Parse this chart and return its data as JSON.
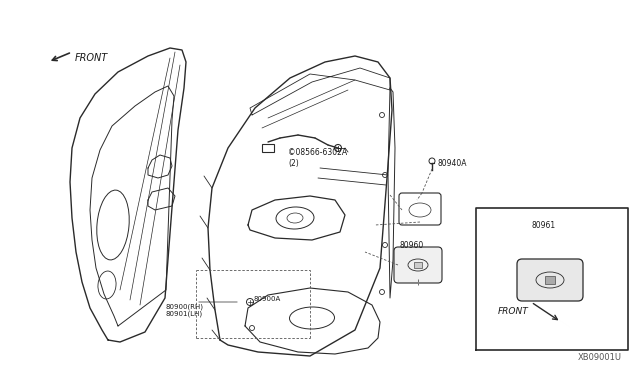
{
  "bg_color": "#ffffff",
  "fig_width": 6.4,
  "fig_height": 3.72,
  "dpi": 100,
  "watermark": "XB09001U",
  "line_color": "#2a2a2a",
  "text_color": "#1a1a1a",
  "labels": {
    "part_08566": "©08566-6302A\n(2)",
    "part_80940A": "80940A",
    "part_80960": "80960",
    "part_80961": "80961",
    "part_80900A": "80900A",
    "part_80900RH": "80900(RH)\n80901(LH)",
    "front_main": "FRONT",
    "front_inset": "FRONT",
    "watermark": "XB09001U"
  }
}
